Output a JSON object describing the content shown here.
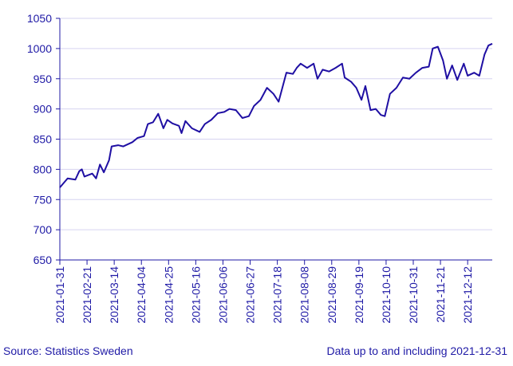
{
  "chart_data": {
    "type": "line",
    "x": [
      "2021-01-31",
      "2021-02-06",
      "2021-02-12",
      "2021-02-15",
      "2021-02-17",
      "2021-02-19",
      "2021-02-25",
      "2021-02-28",
      "2021-03-03",
      "2021-03-06",
      "2021-03-10",
      "2021-03-12",
      "2021-03-17",
      "2021-03-21",
      "2021-03-28",
      "2021-04-01",
      "2021-04-06",
      "2021-04-09",
      "2021-04-13",
      "2021-04-17",
      "2021-04-21",
      "2021-04-24",
      "2021-04-28",
      "2021-05-03",
      "2021-05-05",
      "2021-05-08",
      "2021-05-13",
      "2021-05-19",
      "2021-05-23",
      "2021-05-28",
      "2021-06-02",
      "2021-06-07",
      "2021-06-11",
      "2021-06-16",
      "2021-06-21",
      "2021-06-26",
      "2021-06-30",
      "2021-07-05",
      "2021-07-10",
      "2021-07-15",
      "2021-07-19",
      "2021-07-25",
      "2021-07-30",
      "2021-08-02",
      "2021-08-05",
      "2021-08-10",
      "2021-08-15",
      "2021-08-18",
      "2021-08-22",
      "2021-08-27",
      "2021-09-01",
      "2021-09-06",
      "2021-09-08",
      "2021-09-13",
      "2021-09-17",
      "2021-09-21",
      "2021-09-24",
      "2021-09-28",
      "2021-10-02",
      "2021-10-06",
      "2021-10-09",
      "2021-10-13",
      "2021-10-18",
      "2021-10-23",
      "2021-10-28",
      "2021-11-02",
      "2021-11-07",
      "2021-11-12",
      "2021-11-15",
      "2021-11-19",
      "2021-11-23",
      "2021-11-26",
      "2021-11-30",
      "2021-12-04",
      "2021-12-09",
      "2021-12-12",
      "2021-12-17",
      "2021-12-21",
      "2021-12-25",
      "2021-12-28",
      "2021-12-31"
    ],
    "series": [
      {
        "color": "#1f0fa3",
        "values": [
          770,
          785,
          783,
          797,
          800,
          788,
          793,
          785,
          808,
          795,
          815,
          838,
          840,
          838,
          845,
          852,
          855,
          875,
          878,
          892,
          868,
          882,
          876,
          872,
          860,
          880,
          868,
          862,
          875,
          882,
          893,
          895,
          900,
          898,
          885,
          888,
          905,
          915,
          935,
          925,
          912,
          960,
          958,
          968,
          975,
          968,
          975,
          950,
          965,
          962,
          968,
          975,
          952,
          945,
          935,
          915,
          938,
          898,
          900,
          890,
          888,
          925,
          935,
          952,
          950,
          960,
          968,
          970,
          1000,
          1003,
          980,
          950,
          972,
          948,
          975,
          955,
          960,
          955,
          990,
          1005,
          1008
        ]
      }
    ],
    "xlim": [
      "2021-01-31",
      "2021-12-31"
    ],
    "xticks": [
      "2021-01-31",
      "2021-02-21",
      "2021-03-14",
      "2021-04-04",
      "2021-04-25",
      "2021-05-16",
      "2021-06-06",
      "2021-06-27",
      "2021-07-18",
      "2021-08-08",
      "2021-08-29",
      "2021-09-19",
      "2021-10-10",
      "2021-10-31",
      "2021-11-21",
      "2021-12-12"
    ],
    "ylim": [
      650,
      1050
    ],
    "yticks": [
      650,
      700,
      750,
      800,
      850,
      900,
      950,
      1000,
      1050
    ],
    "grid": true,
    "source": "Source: Statistics Sweden",
    "note": "Data up to and including 2021-12-31"
  }
}
